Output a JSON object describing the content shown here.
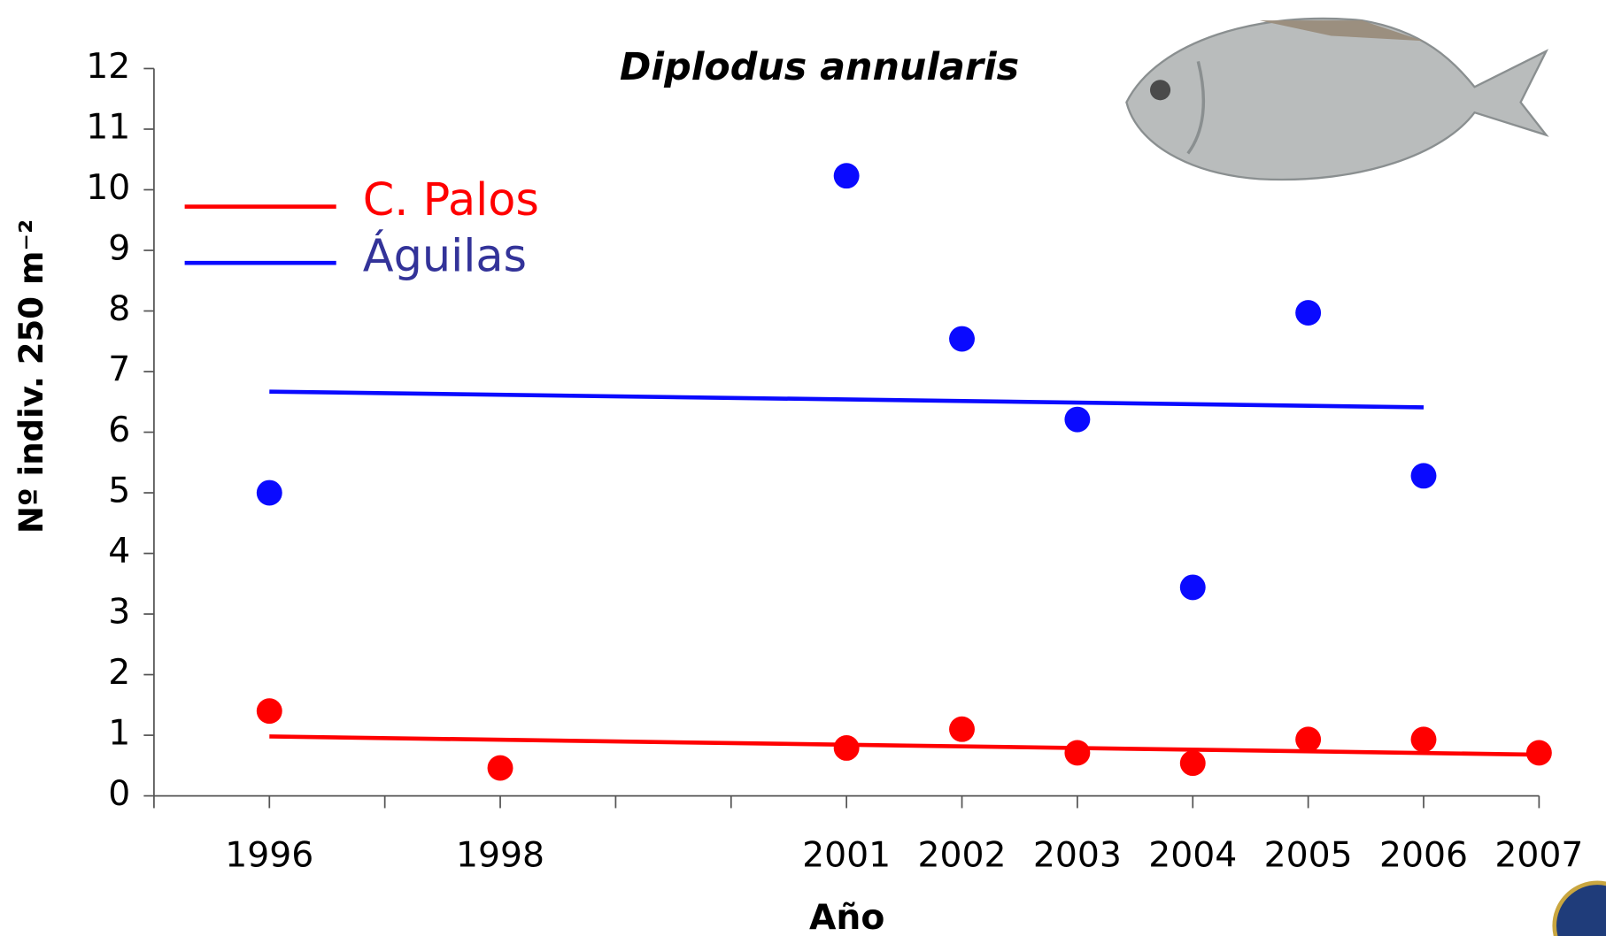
{
  "chart_data": {
    "type": "scatter",
    "title": "Diplodus annularis",
    "x_label": "Año",
    "y_label": "Nº indiv. 250 m⁻²",
    "xlim": [
      1995,
      2007
    ],
    "xticks": [
      {
        "value": 1995,
        "label": null
      },
      1996,
      {
        "value": 1997,
        "label": null
      },
      1998,
      {
        "value": 1999,
        "label": null
      },
      {
        "value": 2000,
        "label": null
      },
      2001,
      2002,
      2003,
      2004,
      2005,
      2006,
      2007
    ],
    "ylim": [
      0,
      12
    ],
    "yticks": [
      0,
      1,
      2,
      3,
      4,
      5,
      6,
      7,
      8,
      9,
      10,
      11,
      12
    ],
    "series": [
      {
        "name": "C. Palos",
        "color": "#ff0000",
        "x": [
          1996,
          1998,
          2001,
          2002,
          2003,
          2004,
          2005,
          2006,
          2007
        ],
        "values": [
          1.4,
          0.46,
          0.79,
          1.1,
          0.71,
          0.54,
          0.93,
          0.93,
          0.71
        ],
        "trend": {
          "x": [
            1996,
            2007
          ],
          "values": [
            0.98,
            0.68
          ]
        }
      },
      {
        "name": "Águilas",
        "color": "#0a0aff",
        "x": [
          1996,
          2001,
          2002,
          2003,
          2004,
          2005,
          2006
        ],
        "values": [
          5.0,
          10.23,
          7.54,
          6.21,
          3.44,
          7.97,
          5.28
        ],
        "trend": {
          "x": [
            1996,
            2006
          ],
          "values": [
            6.67,
            6.41
          ]
        }
      }
    ]
  }
}
